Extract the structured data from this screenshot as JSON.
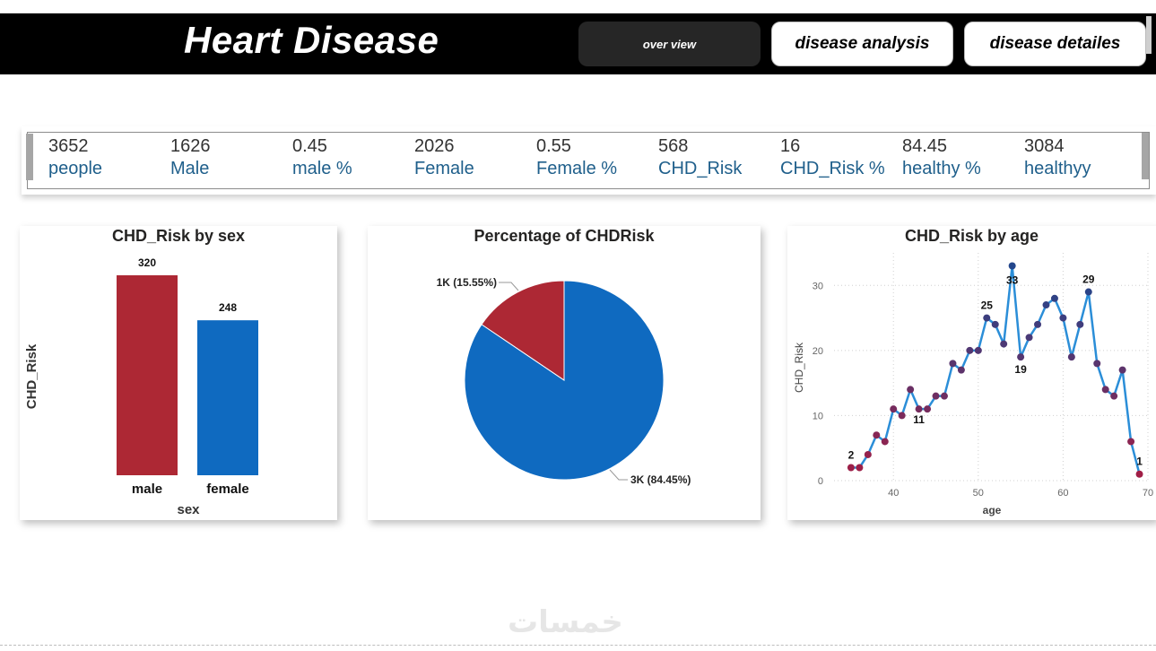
{
  "header": {
    "title": "Heart Disease",
    "nav": [
      {
        "label": "over view"
      },
      {
        "label": "disease analysis"
      },
      {
        "label": "disease detailes"
      }
    ]
  },
  "kpis": [
    {
      "value": "3652",
      "label": "people"
    },
    {
      "value": "1626",
      "label": "Male"
    },
    {
      "value": "0.45",
      "label": "male %"
    },
    {
      "value": "2026",
      "label": "Female"
    },
    {
      "value": "0.55",
      "label": "Female %"
    },
    {
      "value": "568",
      "label": "CHD_Risk"
    },
    {
      "value": "16",
      "label": "CHD_Risk %"
    },
    {
      "value": "84.45",
      "label": "healthy %"
    },
    {
      "value": "3084",
      "label": "healthyy"
    }
  ],
  "colors": {
    "red": "#ad2834",
    "blue": "#0f6ac0",
    "line": "#2b8ed8"
  },
  "chart_data": [
    {
      "type": "bar",
      "title": "CHD_Risk by sex",
      "xlabel": "sex",
      "ylabel": "CHD_Risk",
      "categories": [
        "male",
        "female"
      ],
      "values": [
        320,
        248
      ],
      "data_labels": [
        "320",
        "248"
      ],
      "colors": [
        "#ad2834",
        "#0f6ac0"
      ]
    },
    {
      "type": "pie",
      "title": "Percentage of CHDRisk",
      "slices": [
        {
          "value": 15.55,
          "label": "1K (15.55%)",
          "color": "#ad2834"
        },
        {
          "value": 84.45,
          "label": "3K (84.45%)",
          "color": "#0f6ac0"
        }
      ]
    },
    {
      "type": "line",
      "title": "CHD_Risk by age",
      "xlabel": "age",
      "ylabel": "CHD_Risk",
      "x": [
        35,
        36,
        37,
        38,
        39,
        40,
        41,
        42,
        43,
        44,
        45,
        46,
        47,
        48,
        49,
        50,
        51,
        52,
        53,
        54,
        55,
        56,
        57,
        58,
        59,
        60,
        61,
        62,
        63,
        64,
        65,
        66,
        67,
        68,
        69
      ],
      "y": [
        2,
        2,
        4,
        7,
        6,
        11,
        10,
        14,
        11,
        11,
        13,
        13,
        18,
        17,
        20,
        20,
        25,
        24,
        21,
        33,
        19,
        22,
        24,
        27,
        28,
        25,
        19,
        24,
        29,
        18,
        14,
        13,
        17,
        6,
        1
      ],
      "xlim": [
        33,
        70
      ],
      "ylim": [
        0,
        35
      ],
      "xticks": [
        "40",
        "50",
        "60",
        "70"
      ],
      "yticks": [
        "0",
        "10",
        "20",
        "30"
      ],
      "annotations": [
        "2",
        "11",
        "25",
        "33",
        "19",
        "29",
        "1"
      ]
    }
  ]
}
